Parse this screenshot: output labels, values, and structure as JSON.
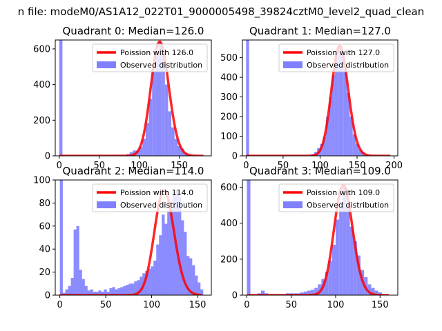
{
  "figure": {
    "suptitle": "n file: modeM0/AS1A12_022T01_9000005498_39824cztM0_level2_quad_clean"
  },
  "colors": {
    "observed": "#8080ff",
    "poisson": "#ff0000",
    "axes": "#000000"
  },
  "chart_data": [
    {
      "type": "bar",
      "title": "Quadrant 0: Median=126.0",
      "median": 126.0,
      "xlim": [
        -5,
        190
      ],
      "ylim": [
        0,
        650
      ],
      "xticks": [
        0,
        50,
        100,
        150
      ],
      "yticks": [
        0,
        200,
        400,
        600
      ],
      "legend_placement": "top-right",
      "series": [
        {
          "name": "Poission with 126.0",
          "type": "line",
          "color": "#ff0000"
        },
        {
          "name": "Observed distribution",
          "type": "bar",
          "color": "#8080ff",
          "bin_width": 4,
          "x": [
            0,
            84,
            88,
            92,
            96,
            100,
            104,
            108,
            112,
            116,
            120,
            124,
            128,
            132,
            136,
            140,
            144,
            148,
            152,
            156,
            160
          ],
          "values": [
            650,
            10,
            20,
            30,
            30,
            50,
            95,
            185,
            320,
            470,
            580,
            640,
            560,
            400,
            250,
            160,
            95,
            55,
            40,
            15,
            5
          ]
        }
      ]
    },
    {
      "type": "bar",
      "title": "Quadrant 1: Median=127.0",
      "median": 127.0,
      "xlim": [
        -5,
        205
      ],
      "ylim": [
        0,
        590
      ],
      "xticks": [
        0,
        50,
        100,
        150,
        200
      ],
      "yticks": [
        0,
        100,
        200,
        300,
        400,
        500
      ],
      "legend_placement": "top-right",
      "series": [
        {
          "name": "Poission with 127.0",
          "type": "line",
          "color": "#ff0000"
        },
        {
          "name": "Observed distribution",
          "type": "bar",
          "color": "#8080ff",
          "bin_width": 4,
          "x": [
            0,
            88,
            92,
            96,
            100,
            104,
            108,
            112,
            116,
            120,
            124,
            128,
            132,
            136,
            140,
            144,
            148,
            152,
            156,
            160
          ],
          "values": [
            590,
            10,
            20,
            40,
            60,
            95,
            200,
            300,
            410,
            505,
            560,
            520,
            440,
            320,
            200,
            110,
            60,
            30,
            20,
            5
          ]
        }
      ]
    },
    {
      "type": "bar",
      "title": "Quadrant 2: Median=114.0",
      "median": 114.0,
      "xlim": [
        -5,
        165
      ],
      "ylim": [
        0,
        100
      ],
      "xticks": [
        0,
        50,
        100,
        150
      ],
      "yticks": [
        0,
        20,
        40,
        60,
        80,
        100
      ],
      "legend_placement": "top-right",
      "series": [
        {
          "name": "Poission with 114.0",
          "type": "line",
          "color": "#ff0000"
        },
        {
          "name": "Observed distribution",
          "type": "bar",
          "color": "#8080ff",
          "bin_width": 3.2,
          "x": [
            0,
            3,
            6,
            9,
            12,
            15,
            18,
            21,
            24,
            27,
            30,
            33,
            36,
            39,
            42,
            45,
            48,
            51,
            54,
            57,
            60,
            63,
            66,
            69,
            72,
            75,
            78,
            81,
            84,
            87,
            90,
            93,
            96,
            99,
            102,
            105,
            108,
            111,
            114,
            117,
            120,
            123,
            126,
            129,
            132,
            135,
            138,
            141,
            144,
            147,
            150,
            153
          ],
          "values": [
            100,
            2,
            5,
            8,
            15,
            57,
            60,
            22,
            14,
            8,
            4,
            5,
            3,
            3,
            4,
            3,
            5,
            3,
            6,
            7,
            5,
            6,
            7,
            8,
            9,
            10,
            10,
            12,
            13,
            16,
            19,
            21,
            23,
            25,
            30,
            44,
            52,
            70,
            62,
            73,
            75,
            88,
            91,
            85,
            65,
            55,
            34,
            32,
            26,
            17,
            11,
            5
          ]
        }
      ]
    },
    {
      "type": "bar",
      "title": "Quadrant 3: Median=109.0",
      "median": 109.0,
      "xlim": [
        -5,
        170
      ],
      "ylim": [
        0,
        640
      ],
      "xticks": [
        0,
        50,
        100,
        150
      ],
      "yticks": [
        0,
        200,
        400,
        600
      ],
      "legend_placement": "top-right",
      "series": [
        {
          "name": "Poission with 109.0",
          "type": "line",
          "color": "#ff0000"
        },
        {
          "name": "Observed distribution",
          "type": "bar",
          "color": "#8080ff",
          "bin_width": 4,
          "x": [
            0,
            12,
            16,
            20,
            24,
            28,
            32,
            36,
            40,
            44,
            48,
            52,
            56,
            60,
            64,
            68,
            72,
            76,
            80,
            84,
            88,
            92,
            96,
            100,
            104,
            108,
            112,
            116,
            120,
            124,
            128,
            132,
            136,
            140,
            144,
            148,
            152
          ],
          "values": [
            640,
            10,
            25,
            10,
            5,
            5,
            5,
            5,
            5,
            10,
            10,
            10,
            10,
            15,
            20,
            25,
            30,
            40,
            60,
            90,
            130,
            190,
            280,
            420,
            520,
            610,
            500,
            380,
            300,
            220,
            140,
            100,
            60,
            40,
            25,
            15,
            5
          ]
        }
      ]
    }
  ]
}
